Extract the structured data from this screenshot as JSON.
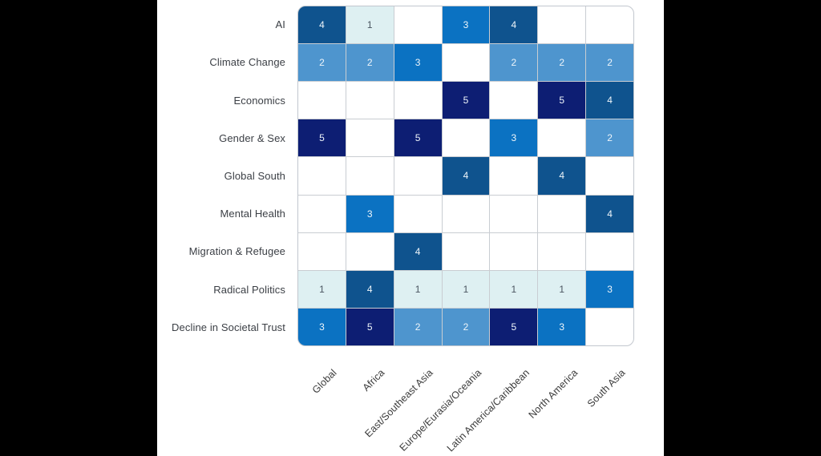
{
  "canvas": {
    "background": "#000000",
    "panel_background": "#ffffff"
  },
  "chart_data": {
    "type": "heatmap",
    "title": "",
    "xlabel": "",
    "ylabel": "",
    "legend": "none",
    "x_label_rotation_deg": -45,
    "rows": [
      "AI",
      "Climate Change",
      "Economics",
      "Gender & Sex",
      "Global South",
      "Mental Health",
      "Migration & Refugee",
      "Radical Politics",
      "Decline in Societal Trust"
    ],
    "columns": [
      "Global",
      "Africa",
      "East/Southeast Asia",
      "Europe/Eurasia/Oceania",
      "Latin America/Caribbean",
      "North America",
      "South Asia"
    ],
    "values": [
      [
        4,
        1,
        null,
        3,
        4,
        null,
        null
      ],
      [
        2,
        2,
        3,
        null,
        2,
        2,
        2
      ],
      [
        null,
        null,
        null,
        5,
        null,
        5,
        4
      ],
      [
        5,
        null,
        5,
        null,
        3,
        null,
        2
      ],
      [
        null,
        null,
        null,
        4,
        null,
        4,
        null
      ],
      [
        null,
        3,
        null,
        null,
        null,
        null,
        4
      ],
      [
        null,
        null,
        4,
        null,
        null,
        null,
        null
      ],
      [
        1,
        4,
        1,
        1,
        1,
        1,
        3
      ],
      [
        3,
        5,
        2,
        2,
        5,
        3,
        null
      ]
    ],
    "value_range": [
      1,
      5
    ],
    "color_scale": {
      "1": "#def0f2",
      "2": "#4e95ce",
      "3": "#0b72c2",
      "4": "#0f538e",
      "5": "#0d1e73",
      "empty": "#ffffff"
    },
    "cell_text_colors": {
      "on_light": "#4a5560",
      "on_dark": "#eef5fa"
    },
    "grid_style": {
      "line_color": "#c9cdd2",
      "border_color": "#c2c7ce",
      "corner_radius_px": 10
    }
  }
}
